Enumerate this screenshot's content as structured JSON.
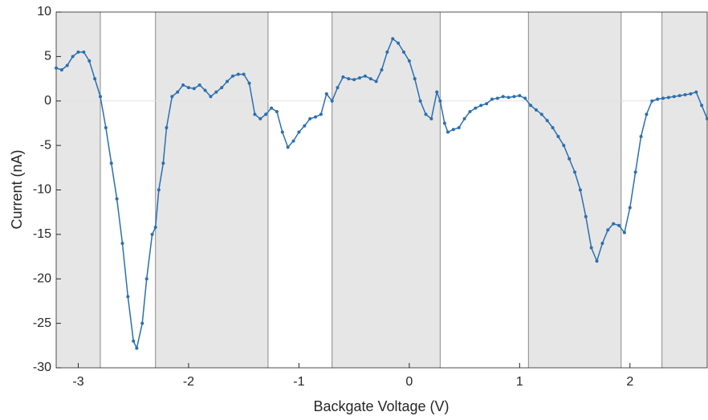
{
  "chart_data": {
    "type": "line",
    "xlabel": "Backgate Voltage (V)",
    "ylabel": "Current (nA)",
    "xlim": [
      -3.2,
      2.7
    ],
    "ylim": [
      -30,
      10
    ],
    "xticks": [
      -3,
      -2,
      -1,
      0,
      1,
      2
    ],
    "yticks": [
      -30,
      -25,
      -20,
      -15,
      -10,
      -5,
      0,
      5,
      10
    ],
    "bands": [
      [
        -3.2,
        -2.8
      ],
      [
        -2.3,
        -1.28
      ],
      [
        -0.7,
        0.28
      ],
      [
        1.08,
        1.92
      ],
      [
        2.29,
        2.7
      ]
    ],
    "band_color": "#e6e6e6",
    "series": [
      {
        "color": "#2a6fb0",
        "x": [
          -3.2,
          -3.15,
          -3.1,
          -3.05,
          -3.0,
          -2.95,
          -2.9,
          -2.85,
          -2.8,
          -2.75,
          -2.7,
          -2.65,
          -2.6,
          -2.55,
          -2.5,
          -2.47,
          -2.42,
          -2.38,
          -2.33,
          -2.3,
          -2.27,
          -2.23,
          -2.2,
          -2.15,
          -2.1,
          -2.05,
          -2.0,
          -1.95,
          -1.9,
          -1.85,
          -1.8,
          -1.75,
          -1.7,
          -1.65,
          -1.6,
          -1.55,
          -1.5,
          -1.45,
          -1.4,
          -1.35,
          -1.3,
          -1.25,
          -1.2,
          -1.15,
          -1.1,
          -1.05,
          -1.0,
          -0.95,
          -0.9,
          -0.85,
          -0.8,
          -0.75,
          -0.7,
          -0.65,
          -0.6,
          -0.55,
          -0.5,
          -0.45,
          -0.4,
          -0.35,
          -0.3,
          -0.25,
          -0.2,
          -0.15,
          -0.1,
          -0.05,
          0.0,
          0.05,
          0.1,
          0.15,
          0.2,
          0.25,
          0.28,
          0.32,
          0.35,
          0.4,
          0.45,
          0.5,
          0.55,
          0.6,
          0.65,
          0.7,
          0.75,
          0.8,
          0.85,
          0.9,
          0.95,
          1.0,
          1.05,
          1.1,
          1.15,
          1.2,
          1.25,
          1.3,
          1.35,
          1.4,
          1.45,
          1.5,
          1.55,
          1.6,
          1.65,
          1.7,
          1.75,
          1.8,
          1.85,
          1.9,
          1.95,
          2.0,
          2.05,
          2.1,
          2.15,
          2.2,
          2.25,
          2.3,
          2.35,
          2.4,
          2.45,
          2.5,
          2.55,
          2.6,
          2.65,
          2.7
        ],
        "values": [
          3.7,
          3.5,
          4.0,
          5.0,
          5.5,
          5.5,
          4.5,
          2.5,
          0.5,
          -3,
          -7,
          -11,
          -16,
          -22,
          -27,
          -27.8,
          -25,
          -20,
          -15,
          -14.2,
          -10,
          -7,
          -3,
          0.5,
          1,
          1.8,
          1.5,
          1.4,
          1.8,
          1.2,
          0.5,
          1.0,
          1.5,
          2.2,
          2.8,
          3.0,
          3.0,
          2.0,
          -1.5,
          -2,
          -1.5,
          -0.8,
          -1.2,
          -3.5,
          -5.2,
          -4.5,
          -3.5,
          -2.8,
          -2,
          -1.8,
          -1.5,
          0.8,
          0,
          1.5,
          2.7,
          2.5,
          2.4,
          2.6,
          2.8,
          2.5,
          2.2,
          3.5,
          5.5,
          7,
          6.5,
          5.5,
          4.5,
          2.5,
          0,
          -1.5,
          -2,
          1,
          0,
          -2.5,
          -3.5,
          -3.2,
          -3,
          -2,
          -1.2,
          -0.8,
          -0.5,
          -0.3,
          0.2,
          0.3,
          0.5,
          0.4,
          0.5,
          0.6,
          0.3,
          -0.5,
          -1,
          -1.5,
          -2.2,
          -3,
          -4,
          -5,
          -6.5,
          -8,
          -10,
          -13,
          -16.5,
          -18,
          -16,
          -14.5,
          -13.8,
          -14,
          -14.8,
          -12,
          -8,
          -4,
          -1.5,
          0,
          0.2,
          0.3,
          0.4,
          0.5,
          0.6,
          0.7,
          0.8,
          1,
          -0.5,
          -2
        ]
      }
    ]
  }
}
